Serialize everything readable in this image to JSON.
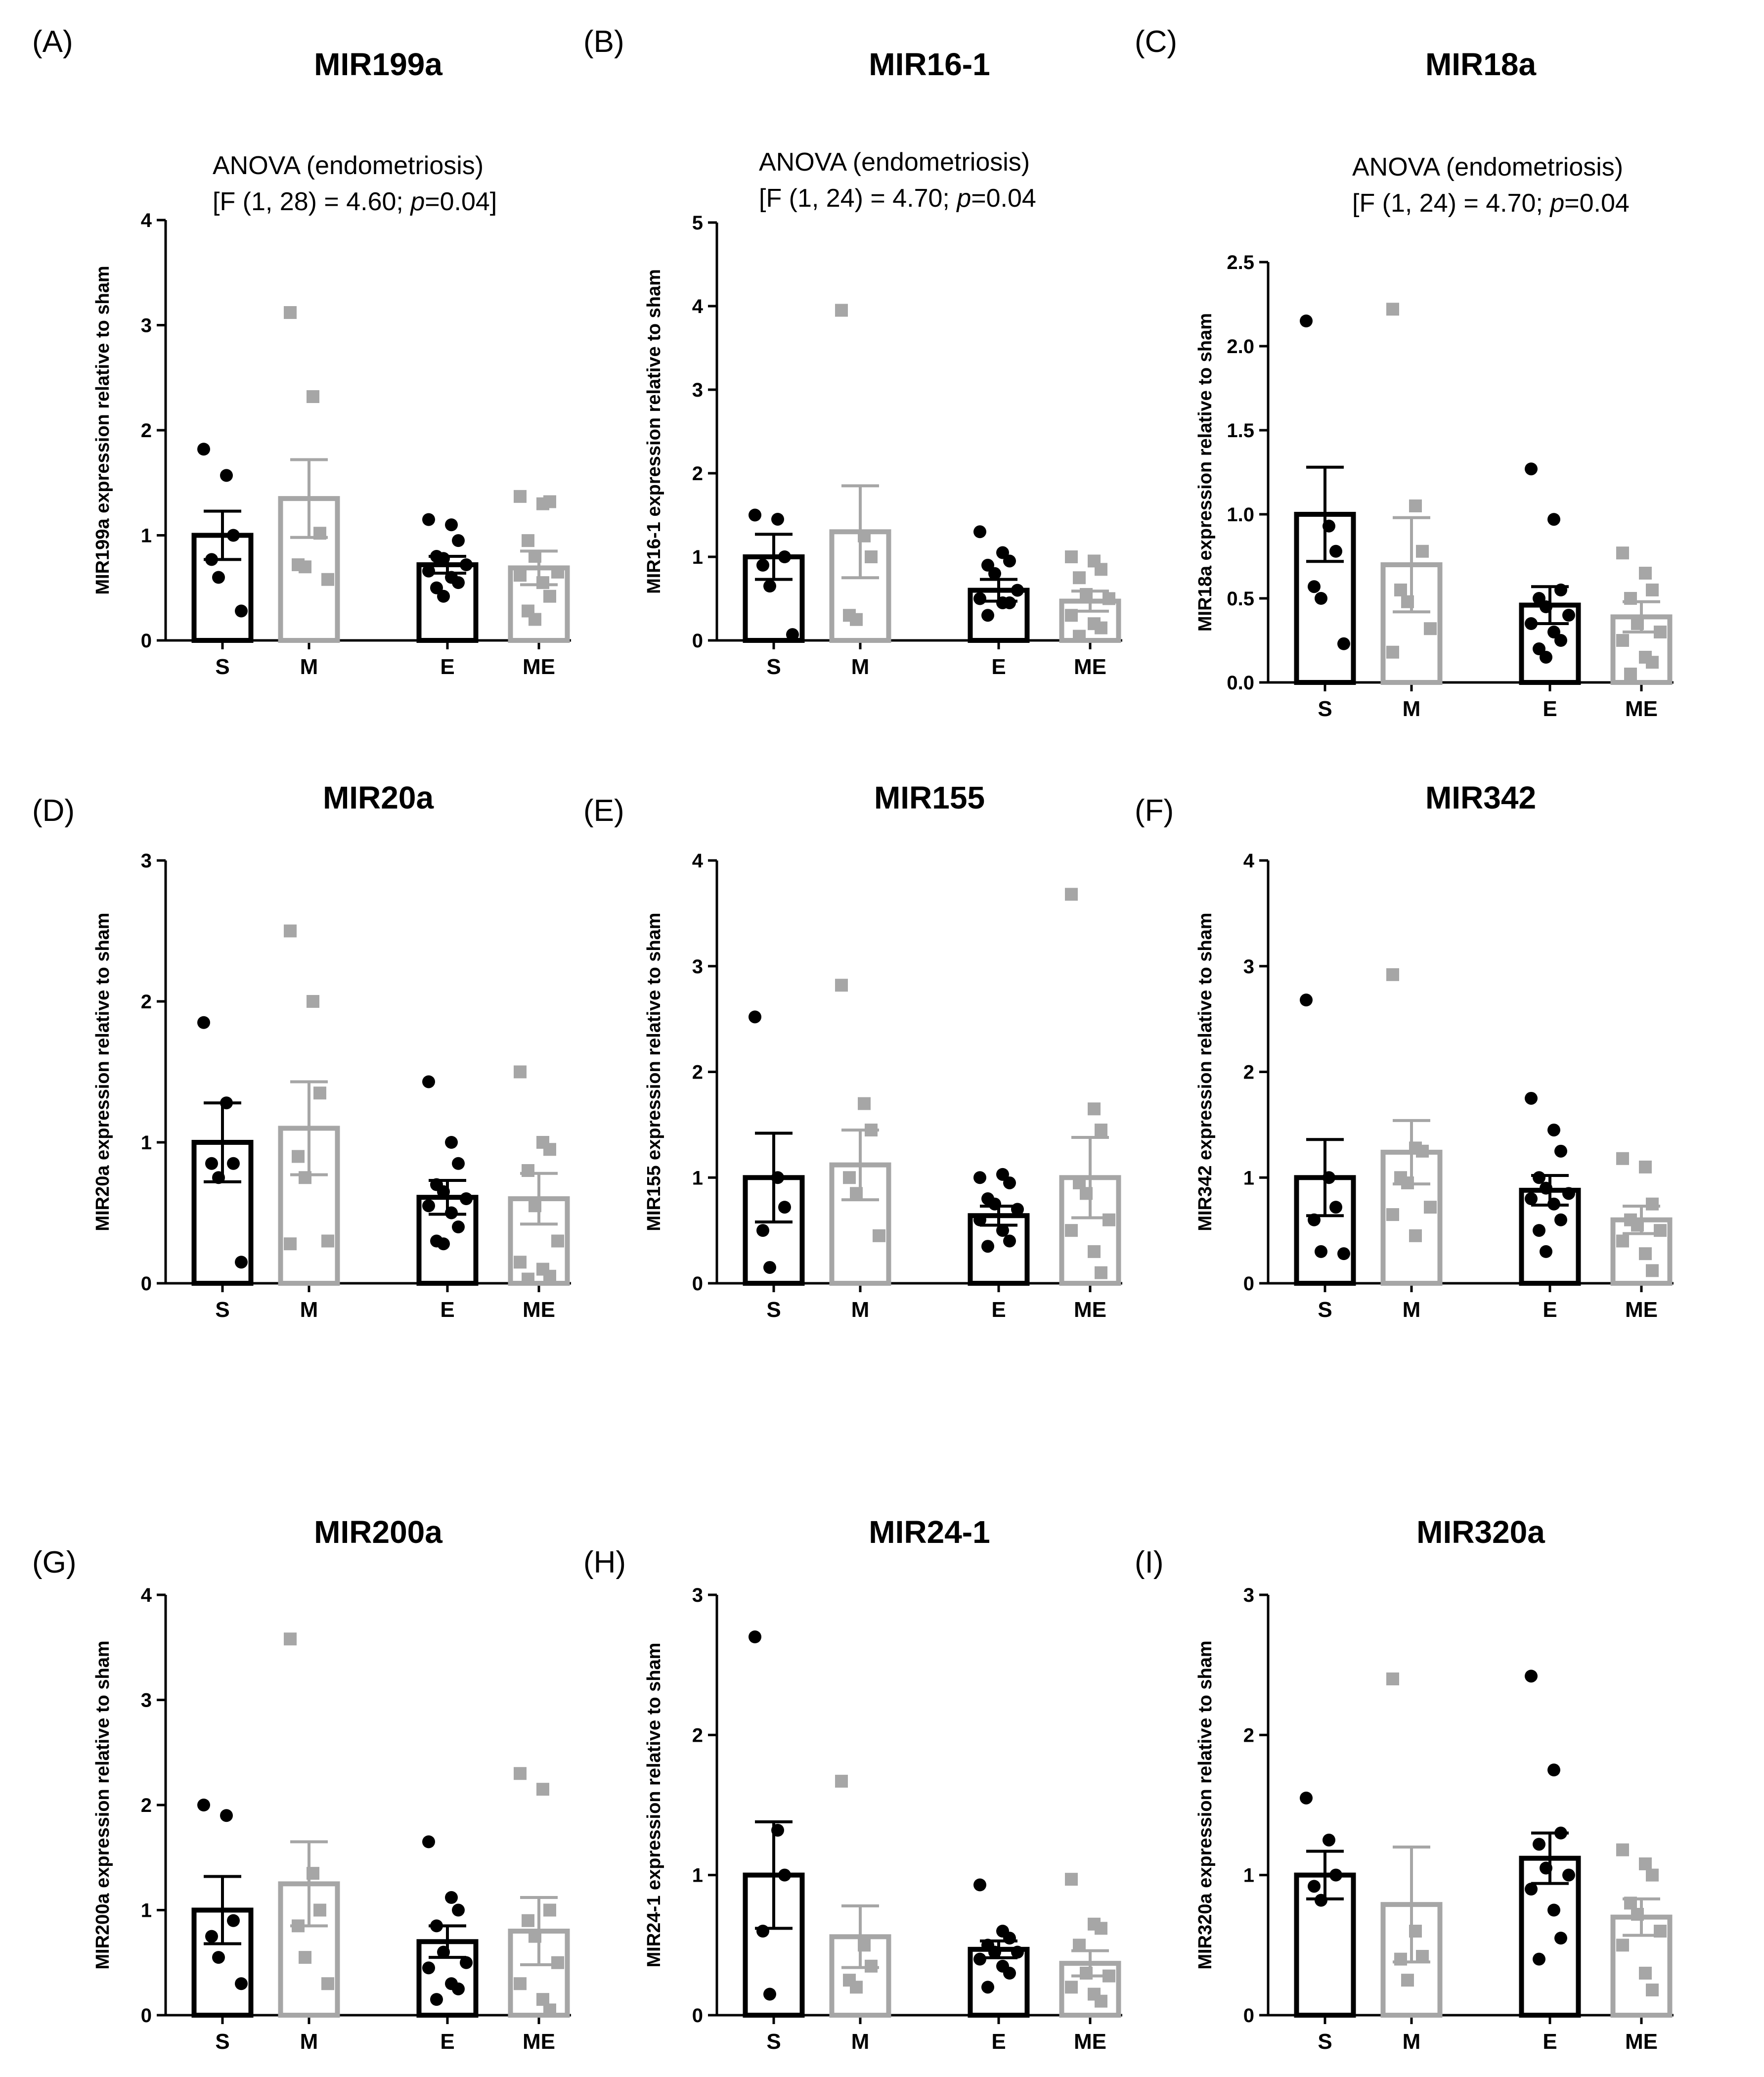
{
  "colors": {
    "black_group": "#000000",
    "gray_group": "#a6a6a6"
  },
  "chart_data": [
    {
      "letter": "(A)",
      "title": "MIR199a",
      "type": "bar",
      "ylabel": "MIR199a expression relative to sham",
      "ylim": [
        0,
        4
      ],
      "yticks": [
        "0",
        "1",
        "2",
        "3",
        "4"
      ],
      "anova": [
        "ANOVA (endometriosis)",
        "[F (1, 28) = 4.60; ",
        "p",
        "=0.04]"
      ],
      "categories": [
        "S",
        "M",
        "E",
        "ME"
      ],
      "means": [
        1.0,
        1.35,
        0.72,
        0.69
      ],
      "sem": [
        0.23,
        0.37,
        0.08,
        0.16
      ],
      "points": [
        [
          1.82,
          1.57,
          1.0,
          0.77,
          0.6,
          0.28
        ],
        [
          3.12,
          2.32,
          1.02,
          0.72,
          0.7,
          0.58
        ],
        [
          1.15,
          1.1,
          0.95,
          0.8,
          0.78,
          0.72,
          0.66,
          0.6,
          0.55,
          0.5,
          0.42
        ],
        [
          1.37,
          1.3,
          1.32,
          0.95,
          0.8,
          0.65,
          0.62,
          0.55,
          0.42,
          0.28,
          0.2
        ]
      ]
    },
    {
      "letter": "(B)",
      "title": "MIR16-1",
      "type": "bar",
      "ylabel": "MIR16-1 expression relative to sham",
      "ylim": [
        0,
        5
      ],
      "yticks": [
        "0",
        "1",
        "2",
        "3",
        "4",
        "5"
      ],
      "anova": [
        "ANOVA (endometriosis)",
        "[F (1, 24) = 4.70; ",
        "p",
        "=0.04"
      ],
      "categories": [
        "S",
        "M",
        "E",
        "ME"
      ],
      "means": [
        1.0,
        1.3,
        0.6,
        0.47
      ],
      "sem": [
        0.27,
        0.55,
        0.13,
        0.12
      ],
      "points": [
        [
          1.5,
          1.45,
          1.0,
          0.9,
          0.65,
          0.07
        ],
        [
          3.95,
          1.25,
          1.0,
          0.3,
          0.25
        ],
        [
          1.3,
          1.05,
          0.95,
          0.9,
          0.8,
          0.6,
          0.5,
          0.45,
          0.45,
          0.3
        ],
        [
          1.0,
          0.95,
          0.85,
          0.75,
          0.55,
          0.5,
          0.3,
          0.2,
          0.15,
          0.05
        ]
      ]
    },
    {
      "letter": "(C)",
      "title": "MIR18a",
      "type": "bar",
      "ylabel": "MIR18a expression relative to sham",
      "ylim": [
        0,
        2.5
      ],
      "yticks": [
        "0.0",
        "0.5",
        "1.0",
        "1.5",
        "2.0",
        "2.5"
      ],
      "anova": [
        "ANOVA (endometriosis)",
        "[F (1, 24) = 4.70; ",
        "p",
        "=0.04"
      ],
      "categories": [
        "S",
        "M",
        "E",
        "ME"
      ],
      "means": [
        1.0,
        0.7,
        0.46,
        0.39
      ],
      "sem": [
        0.28,
        0.28,
        0.11,
        0.09
      ],
      "points": [
        [
          2.15,
          0.93,
          0.78,
          0.57,
          0.5,
          0.23
        ],
        [
          2.22,
          1.05,
          0.78,
          0.55,
          0.48,
          0.32,
          0.18
        ],
        [
          1.27,
          0.97,
          0.55,
          0.5,
          0.45,
          0.4,
          0.35,
          0.3,
          0.25,
          0.2,
          0.15
        ],
        [
          0.77,
          0.65,
          0.55,
          0.5,
          0.35,
          0.3,
          0.25,
          0.15,
          0.12,
          0.05
        ]
      ]
    },
    {
      "letter": "(D)",
      "title": "MIR20a",
      "type": "bar",
      "ylabel": "MIR20a expression relative to sham",
      "ylim": [
        0,
        3
      ],
      "yticks": [
        "0",
        "1",
        "2",
        "3"
      ],
      "anova": null,
      "categories": [
        "S",
        "M",
        "E",
        "ME"
      ],
      "means": [
        1.0,
        1.1,
        0.61,
        0.6
      ],
      "sem": [
        0.28,
        0.33,
        0.12,
        0.18
      ],
      "points": [
        [
          1.85,
          1.28,
          0.85,
          0.85,
          0.75,
          0.15
        ],
        [
          2.5,
          2.0,
          1.35,
          0.9,
          0.75,
          0.3,
          0.28
        ],
        [
          1.43,
          1.0,
          0.85,
          0.7,
          0.65,
          0.6,
          0.55,
          0.5,
          0.4,
          0.3,
          0.28
        ],
        [
          1.5,
          1.0,
          0.95,
          0.8,
          0.55,
          0.3,
          0.15,
          0.1,
          0.05,
          0.03
        ]
      ]
    },
    {
      "letter": "(E)",
      "title": "MIR155",
      "type": "bar",
      "ylabel": "MIR155 expression relative to sham",
      "ylim": [
        0,
        4
      ],
      "yticks": [
        "0",
        "1",
        "2",
        "3",
        "4"
      ],
      "anova": null,
      "categories": [
        "S",
        "M",
        "E",
        "ME"
      ],
      "means": [
        1.0,
        1.12,
        0.64,
        1.0
      ],
      "sem": [
        0.42,
        0.33,
        0.09,
        0.38
      ],
      "points": [
        [
          2.52,
          1.0,
          0.72,
          0.5,
          0.15
        ],
        [
          2.82,
          1.7,
          1.45,
          1.0,
          0.85,
          0.45
        ],
        [
          1.0,
          1.03,
          0.95,
          0.8,
          0.75,
          0.7,
          0.6,
          0.5,
          0.4,
          0.35
        ],
        [
          3.68,
          1.65,
          1.45,
          0.95,
          0.85,
          0.6,
          0.5,
          0.3,
          0.1
        ]
      ]
    },
    {
      "letter": "(F)",
      "title": "MIR342",
      "type": "bar",
      "ylabel": "MIR342 expression relative to sham",
      "ylim": [
        0,
        4
      ],
      "yticks": [
        "0",
        "1",
        "2",
        "3",
        "4"
      ],
      "anova": null,
      "categories": [
        "S",
        "M",
        "E",
        "ME"
      ],
      "means": [
        1.0,
        1.24,
        0.88,
        0.6
      ],
      "sem": [
        0.36,
        0.3,
        0.14,
        0.13
      ],
      "points": [
        [
          2.68,
          1.0,
          0.72,
          0.6,
          0.3,
          0.28
        ],
        [
          2.92,
          1.28,
          1.25,
          1.0,
          0.95,
          0.72,
          0.65,
          0.45
        ],
        [
          1.75,
          1.45,
          1.25,
          1.0,
          0.9,
          0.85,
          0.8,
          0.75,
          0.6,
          0.5,
          0.3
        ],
        [
          1.18,
          1.1,
          0.75,
          0.6,
          0.55,
          0.5,
          0.4,
          0.28,
          0.12
        ]
      ]
    },
    {
      "letter": "(G)",
      "title": "MIR200a",
      "type": "bar",
      "ylabel": "MIR200a expression relative to sham",
      "ylim": [
        0,
        4
      ],
      "yticks": [
        "0",
        "1",
        "2",
        "3",
        "4"
      ],
      "anova": null,
      "categories": [
        "S",
        "M",
        "E",
        "ME"
      ],
      "means": [
        1.0,
        1.25,
        0.7,
        0.8
      ],
      "sem": [
        0.32,
        0.4,
        0.15,
        0.32
      ],
      "points": [
        [
          2.0,
          1.9,
          0.9,
          0.75,
          0.55,
          0.3
        ],
        [
          3.58,
          1.35,
          1.0,
          0.85,
          0.55,
          0.3
        ],
        [
          1.65,
          1.12,
          1.0,
          0.85,
          0.6,
          0.5,
          0.45,
          0.3,
          0.25,
          0.15
        ],
        [
          2.3,
          2.15,
          1.0,
          0.9,
          0.75,
          0.5,
          0.3,
          0.15,
          0.05
        ]
      ]
    },
    {
      "letter": "(H)",
      "title": "MIR24-1",
      "type": "bar",
      "ylabel": "MIR24-1 expression relative to sham",
      "ylim": [
        0,
        3
      ],
      "yticks": [
        "0",
        "1",
        "2",
        "3"
      ],
      "anova": null,
      "categories": [
        "S",
        "M",
        "E",
        "ME"
      ],
      "means": [
        1.0,
        0.56,
        0.47,
        0.37
      ],
      "sem": [
        0.38,
        0.22,
        0.06,
        0.09
      ],
      "points": [
        [
          2.7,
          1.32,
          1.0,
          0.6,
          0.15
        ],
        [
          1.67,
          0.5,
          0.35,
          0.25,
          0.2
        ],
        [
          0.93,
          0.6,
          0.55,
          0.5,
          0.45,
          0.45,
          0.4,
          0.35,
          0.3,
          0.2
        ],
        [
          0.97,
          0.65,
          0.62,
          0.5,
          0.3,
          0.28,
          0.2,
          0.15,
          0.1
        ]
      ]
    },
    {
      "letter": "(I)",
      "title": "MIR320a",
      "type": "bar",
      "ylabel": "MIR320a expression relative to sham",
      "ylim": [
        0,
        3
      ],
      "yticks": [
        "0",
        "1",
        "2",
        "3"
      ],
      "anova": null,
      "categories": [
        "S",
        "M",
        "E",
        "ME"
      ],
      "means": [
        1.0,
        0.79,
        1.12,
        0.7
      ],
      "sem": [
        0.17,
        0.41,
        0.18,
        0.13
      ],
      "points": [
        [
          1.55,
          1.25,
          1.0,
          0.92,
          0.82
        ],
        [
          2.4,
          0.6,
          0.42,
          0.4,
          0.25
        ],
        [
          2.42,
          1.75,
          1.3,
          1.22,
          1.05,
          1.0,
          0.9,
          0.75,
          0.55,
          0.4
        ],
        [
          1.18,
          1.08,
          1.0,
          0.8,
          0.72,
          0.6,
          0.5,
          0.3,
          0.18
        ]
      ]
    }
  ]
}
